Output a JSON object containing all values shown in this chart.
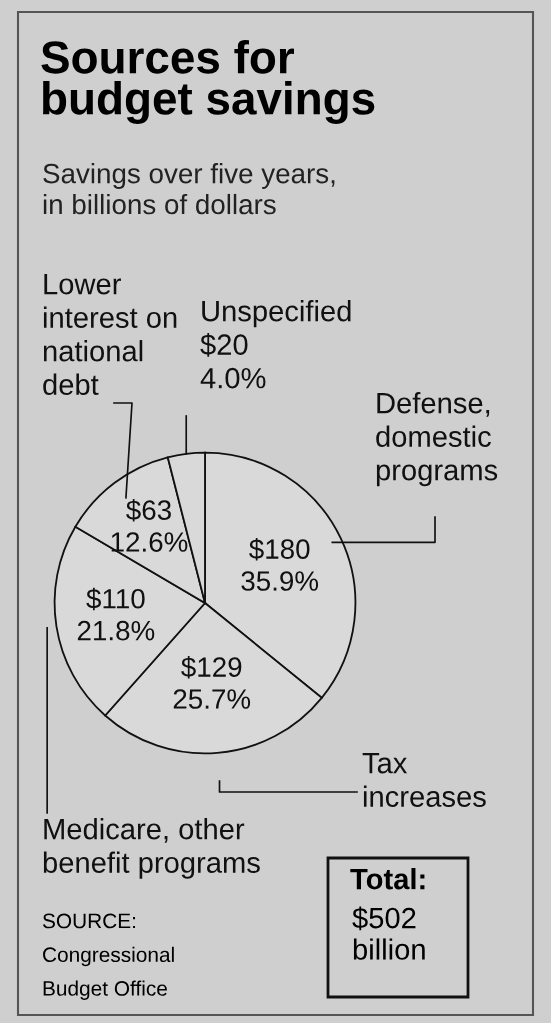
{
  "chart_data": {
    "type": "pie",
    "title": "Sources for\nbudget savings",
    "subtitle": "Savings over five years,\nin billions of dollars",
    "categories": [
      "Defense,\ndomestic\nprograms",
      "Tax\nincreases",
      "Medicare, other\nbenefit programs",
      "Lower\ninterest on\nnational\ndebt",
      "Unspecified"
    ],
    "values": [
      180,
      129,
      110,
      63,
      20
    ],
    "value_labels": [
      "$180\n35.9%",
      "$129\n25.7%",
      "$110\n21.8%",
      "$63\n12.6%",
      "$20\n4.0%"
    ],
    "colors": [
      "#d9d9d9",
      "#d9d9d9",
      "#d9d9d9",
      "#d9d9d9",
      "#d9d9d9"
    ],
    "annotations": [
      "Total:\n$502\nbillion",
      "SOURCE:\nCongressional\nBudget Office"
    ]
  }
}
